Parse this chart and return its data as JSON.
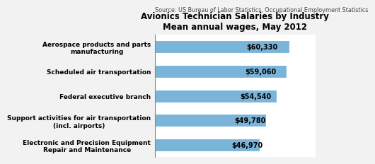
{
  "title_line1": "Avionics Technician Salaries by Industry",
  "title_line2": "Mean annual wages, May 2012",
  "source_text": "Source: US Bureau of Labor Statistics, Occupational Employment Statistics",
  "categories": [
    "Electronic and Precision Equipment\nRepair and Maintenance",
    "Support activities for air transportation\n(incl. airports)",
    "Federal executive branch",
    "Scheduled air transportation",
    "Aerospace products and parts\nmanufacturing"
  ],
  "values": [
    46970,
    49780,
    54540,
    59060,
    60330
  ],
  "bar_color": "#7ab4d8",
  "value_labels": [
    "$46,970",
    "$49,780",
    "$54,540",
    "$59,060",
    "$60,330"
  ],
  "xlim": [
    0,
    72000
  ],
  "background_color": "#f2f2f2",
  "plot_bg_color": "#ffffff",
  "title_fontsize": 8.5,
  "label_fontsize": 6.5,
  "value_fontsize": 7.0,
  "source_fontsize": 5.8
}
